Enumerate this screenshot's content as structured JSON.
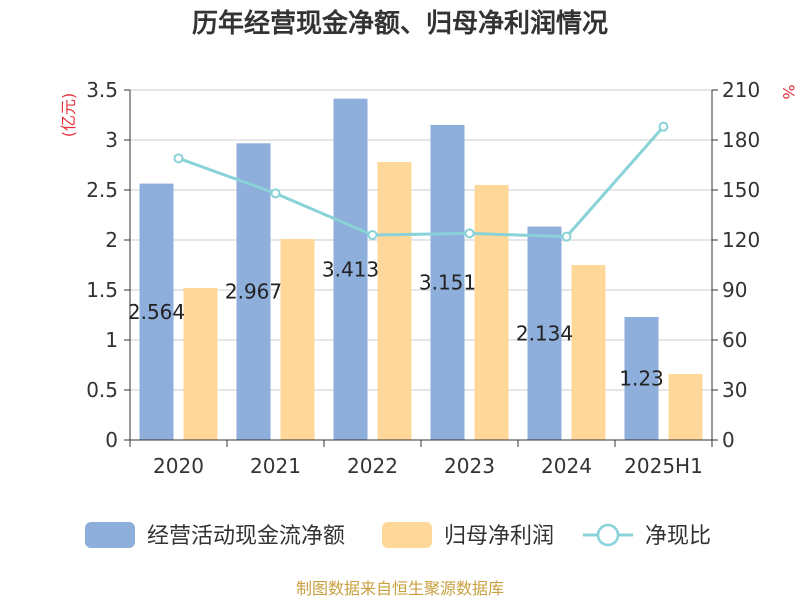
{
  "chart_data": {
    "type": "bar",
    "title": "历年经营现金净额、归母净利润情况",
    "categories": [
      "2020",
      "2021",
      "2022",
      "2023",
      "2024",
      "2025H1"
    ],
    "series": [
      {
        "name": "经营活动现金流净额",
        "type": "bar",
        "axis": "left",
        "color": "#8eaedb",
        "values": [
          2.564,
          2.967,
          3.413,
          3.151,
          2.134,
          1.23
        ],
        "labels": [
          "2.564",
          "2.967",
          "3.413",
          "3.151",
          "2.134",
          "1.23"
        ]
      },
      {
        "name": "归母净利润",
        "type": "bar",
        "axis": "left",
        "color": "#ffd899",
        "values": [
          1.52,
          2.01,
          2.78,
          2.55,
          1.75,
          0.66
        ]
      },
      {
        "name": "净现比",
        "type": "line",
        "axis": "right",
        "color": "#88d2d8",
        "values": [
          169,
          148,
          123,
          124,
          122,
          188
        ]
      }
    ],
    "left_axis": {
      "unit": "(亿元)",
      "min": 0,
      "max": 3.5,
      "ticks": [
        "0",
        "0.5",
        "1",
        "1.5",
        "2",
        "2.5",
        "3",
        "3.5"
      ]
    },
    "right_axis": {
      "unit": "%",
      "min": 0,
      "max": 210,
      "ticks": [
        "0",
        "30",
        "60",
        "90",
        "120",
        "150",
        "180",
        "210"
      ]
    },
    "grid": true,
    "legend_position": "bottom",
    "unit_color": "#e6323c",
    "source": "制图数据来自恒生聚源数据库",
    "source_color": "#c8a040"
  }
}
